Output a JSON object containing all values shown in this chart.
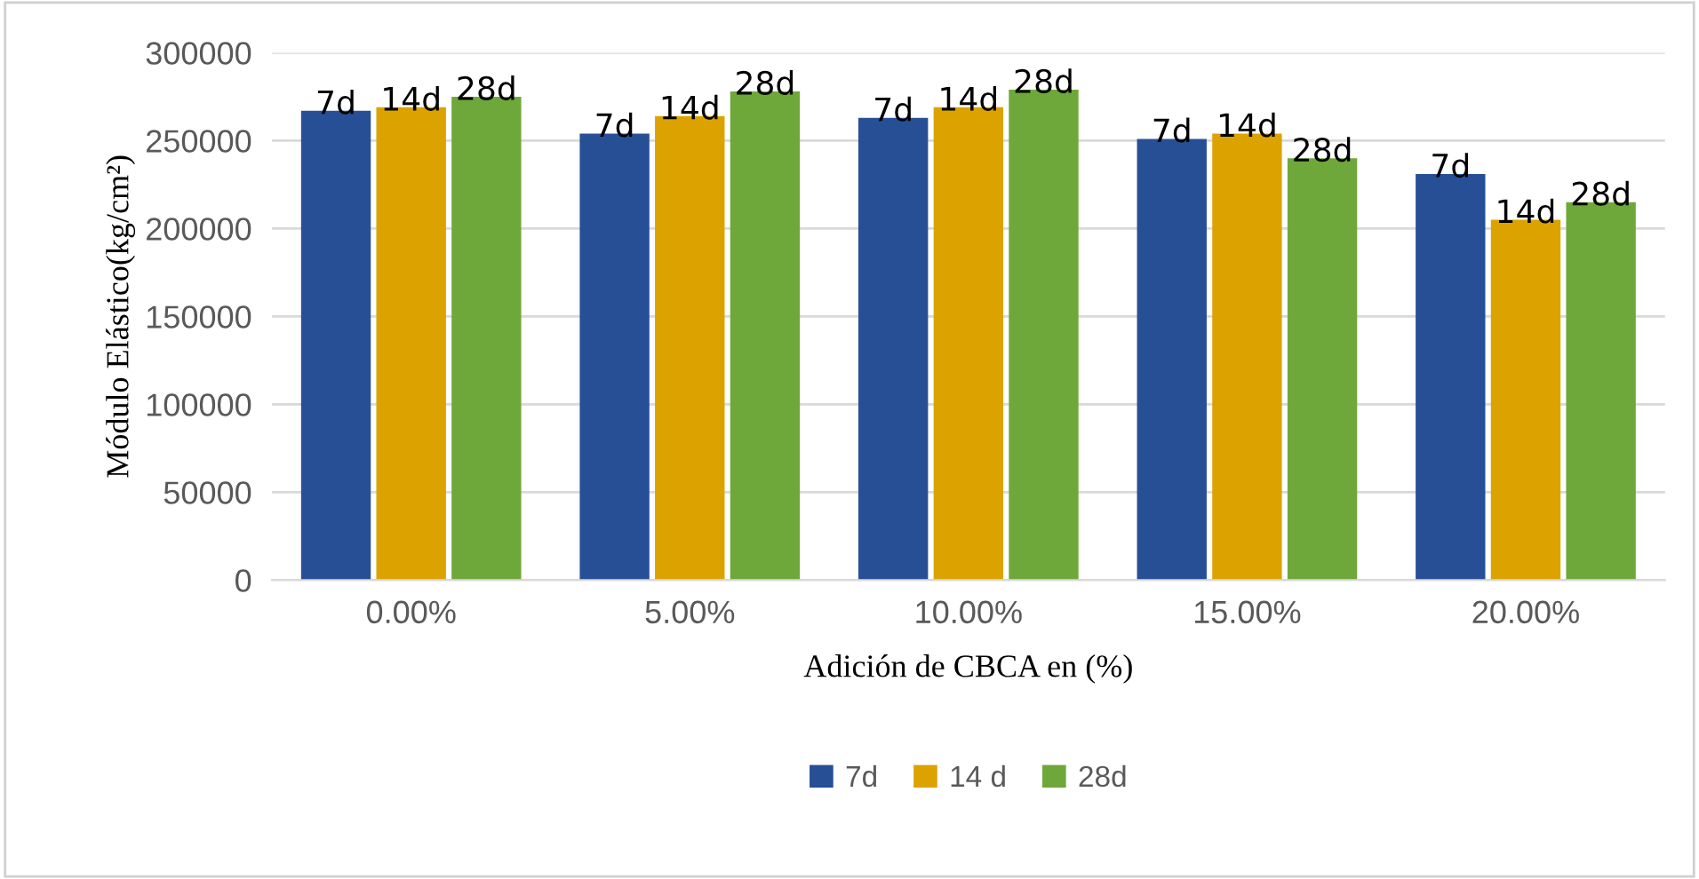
{
  "chart_data": {
    "type": "bar",
    "xlabel": "Adición de CBCA en (%)",
    "ylabel": "Módulo Elástico(kg/cm²)",
    "categories": [
      "0.00%",
      "5.00%",
      "10.00%",
      "15.00%",
      "20.00%"
    ],
    "series": [
      {
        "name": "7d",
        "color": "#264f96",
        "values": [
          267000,
          254000,
          263000,
          251000,
          231000
        ]
      },
      {
        "name": "14 d",
        "color": "#dca300",
        "values": [
          269000,
          264000,
          269000,
          254000,
          205000
        ]
      },
      {
        "name": "28d",
        "color": "#6fa83a",
        "values": [
          275000,
          278000,
          279000,
          240000,
          215000
        ]
      }
    ],
    "annotations": [
      "7d",
      "14d",
      "28d",
      "7d",
      "14d",
      "28d",
      "7d",
      "14d",
      "28d",
      "7d",
      "14d",
      "28d",
      "7d",
      "14d",
      "28d"
    ],
    "ylim": [
      0,
      300000
    ],
    "yticks": [
      0,
      50000,
      100000,
      150000,
      200000,
      250000,
      300000
    ],
    "grid": "y",
    "legend": "bottom"
  }
}
